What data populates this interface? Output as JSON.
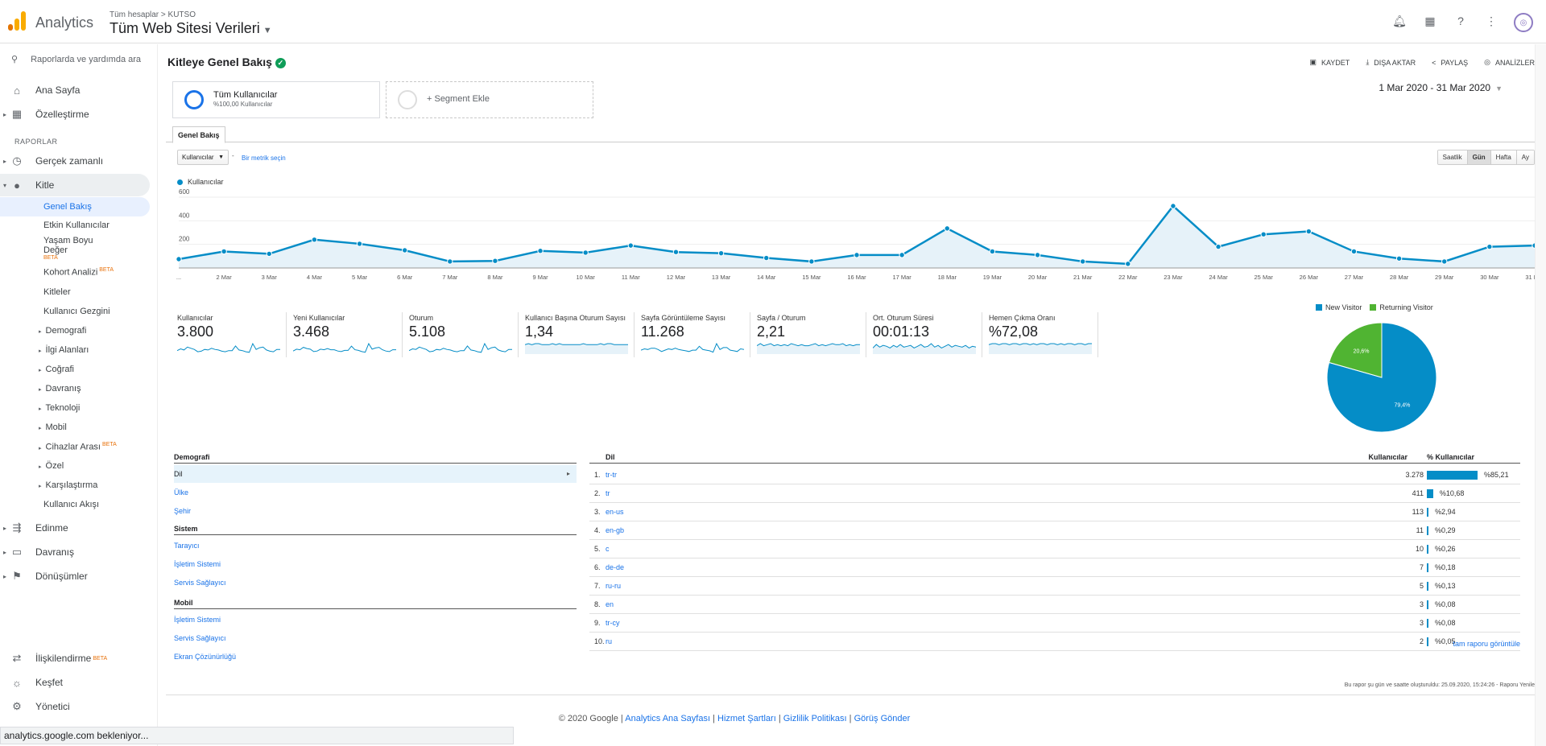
{
  "header": {
    "app_name": "Analytics",
    "breadcrumb": "Tüm hesaplar > KUTSO",
    "view": "Tüm Web Sitesi Verileri"
  },
  "sidebar": {
    "search_placeholder": "Raporlarda ve yardımda ara",
    "home": "Ana Sayfa",
    "customization": "Özelleştirme",
    "reports_label": "RAPORLAR",
    "realtime": "Gerçek zamanlı",
    "audience": "Kitle",
    "audience_items": [
      "Genel Bakış",
      "Etkin Kullanıcılar",
      "Yaşam Boyu",
      "Değer",
      "Kohort Analizi",
      "Kitleler",
      "Kullanıcı Gezgini"
    ],
    "beta": "BETA",
    "audience_groups": [
      "Demografi",
      "İlgi Alanları",
      "Coğrafi",
      "Davranış",
      "Teknoloji",
      "Mobil",
      "Cihazlar Arası",
      "Özel",
      "Karşılaştırma"
    ],
    "user_flow": "Kullanıcı Akışı",
    "acquisition": "Edinme",
    "behavior": "Davranış",
    "conversions": "Dönüşümler",
    "attribution": "İlişkilendirme",
    "discover": "Keşfet",
    "admin": "Yönetici"
  },
  "status_bar": "analytics.google.com bekleniyor...",
  "page": {
    "title": "Kitleye Genel Bakış",
    "actions": [
      "KAYDET",
      "DIŞA AKTAR",
      "PAYLAŞ",
      "ANALİZLER"
    ],
    "segment_all": "Tüm Kullanıcılar",
    "segment_all_sub": "%100,00 Kullanıcılar",
    "segment_add": "+ Segment Ekle",
    "date_range": "1 Mar 2020 - 31 Mar 2020",
    "tab": "Genel Bakış",
    "metric_select": "Kullanıcılar",
    "metric_vs": "-",
    "metric_link": "Bir metrik seçin",
    "granularity": [
      "Saatlik",
      "Gün",
      "Hafta",
      "Ay"
    ],
    "granularity_selected": "Gün",
    "legend": "Kullanıcılar"
  },
  "chart_data": {
    "type": "line",
    "series": [
      {
        "name": "Kullanıcılar",
        "color": "#058dc7",
        "values": [
          75,
          140,
          120,
          240,
          205,
          150,
          55,
          60,
          145,
          130,
          190,
          135,
          125,
          85,
          55,
          110,
          110,
          335,
          140,
          110,
          55,
          35,
          525,
          180,
          285,
          310,
          140,
          80,
          55,
          180,
          190
        ]
      }
    ],
    "x": [
      "...",
      "2 Mar",
      "3 Mar",
      "4 Mar",
      "5 Mar",
      "6 Mar",
      "7 Mar",
      "8 Mar",
      "9 Mar",
      "10 Mar",
      "11 Mar",
      "12 Mar",
      "13 Mar",
      "14 Mar",
      "15 Mar",
      "16 Mar",
      "17 Mar",
      "18 Mar",
      "19 Mar",
      "20 Mar",
      "21 Mar",
      "22 Mar",
      "23 Mar",
      "24 Mar",
      "25 Mar",
      "26 Mar",
      "27 Mar",
      "28 Mar",
      "29 Mar",
      "30 Mar",
      "31 Mar"
    ],
    "yticks": [
      "600",
      "400",
      "200"
    ],
    "ylim": [
      0,
      600
    ]
  },
  "scorecards": [
    {
      "label": "Kullanıcılar",
      "value": "3.800"
    },
    {
      "label": "Yeni Kullanıcılar",
      "value": "3.468"
    },
    {
      "label": "Oturum",
      "value": "5.108"
    },
    {
      "label": "Kullanıcı Başına Oturum Sayısı",
      "value": "1,34"
    },
    {
      "label": "Sayfa Görüntüleme Sayısı",
      "value": "11.268"
    },
    {
      "label": "Sayfa / Oturum",
      "value": "2,21"
    },
    {
      "label": "Ort. Oturum Süresi",
      "value": "00:01:13"
    },
    {
      "label": "Hemen Çıkma Oranı",
      "value": "%72,08"
    }
  ],
  "pie": {
    "legend": [
      {
        "name": "New Visitor",
        "color": "#058dc7"
      },
      {
        "name": "Returning Visitor",
        "color": "#50b432"
      }
    ],
    "values": [
      79.4,
      20.6
    ],
    "labels": [
      "79,4%",
      "20,6%"
    ]
  },
  "demographics": {
    "headings": [
      "Demografi",
      "Sistem",
      "Mobil"
    ],
    "demografi": [
      "Dil",
      "Ülke",
      "Şehir"
    ],
    "sistem": [
      "Tarayıcı",
      "İşletim Sistemi",
      "Servis Sağlayıcı"
    ],
    "mobil": [
      "İşletim Sistemi",
      "Servis Sağlayıcı",
      "Ekran Çözünürlüğü"
    ]
  },
  "language_table": {
    "headers": [
      "Dil",
      "Kullanıcılar",
      "% Kullanıcılar"
    ],
    "rows": [
      {
        "n": "1.",
        "k": "tr-tr",
        "v": "3.278",
        "p": "%85,21",
        "pct": 85.21
      },
      {
        "n": "2.",
        "k": "tr",
        "v": "411",
        "p": "%10,68",
        "pct": 10.68
      },
      {
        "n": "3.",
        "k": "en-us",
        "v": "113",
        "p": "%2,94",
        "pct": 2.94
      },
      {
        "n": "4.",
        "k": "en-gb",
        "v": "11",
        "p": "%0,29",
        "pct": 0.29
      },
      {
        "n": "5.",
        "k": "c",
        "v": "10",
        "p": "%0,26",
        "pct": 0.26
      },
      {
        "n": "6.",
        "k": "de-de",
        "v": "7",
        "p": "%0,18",
        "pct": 0.18
      },
      {
        "n": "7.",
        "k": "ru-ru",
        "v": "5",
        "p": "%0,13",
        "pct": 0.13
      },
      {
        "n": "8.",
        "k": "en",
        "v": "3",
        "p": "%0,08",
        "pct": 0.08
      },
      {
        "n": "9.",
        "k": "tr-cy",
        "v": "3",
        "p": "%0,08",
        "pct": 0.08
      },
      {
        "n": "10.",
        "k": "ru",
        "v": "2",
        "p": "%0,05",
        "pct": 0.05
      }
    ],
    "full_report": "tam raporu görüntüle"
  },
  "generated": "Bu rapor şu gün ve saatte oluşturuldu: 25.09.2020, 15:24:26 - Raporu Yenile",
  "footer": {
    "copyright": "© 2020 Google",
    "links": [
      "Analytics Ana Sayfası",
      "Hizmet Şartları",
      "Gizlilik Politikası",
      "Görüş Gönder"
    ]
  }
}
